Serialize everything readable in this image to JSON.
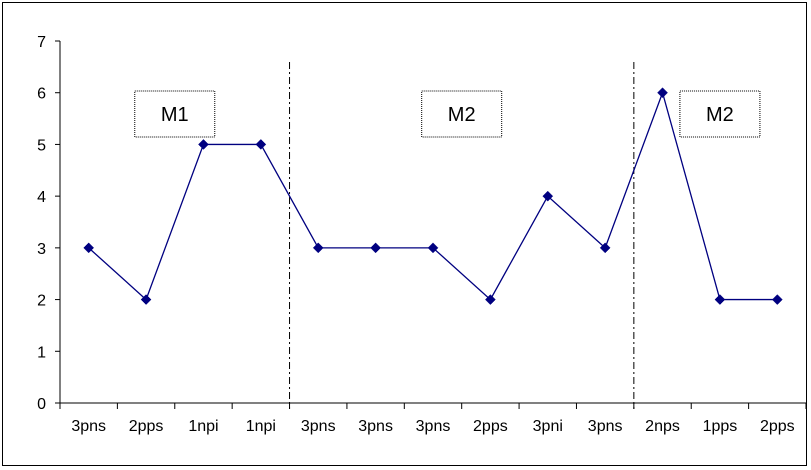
{
  "chart_data": {
    "type": "line",
    "title": "",
    "xlabel": "",
    "ylabel": "",
    "ylim": [
      0,
      7
    ],
    "yticks": [
      0,
      1,
      2,
      3,
      4,
      5,
      6,
      7
    ],
    "grid": false,
    "legend": "none",
    "categories": [
      "3pns",
      "2pps",
      "1npi",
      "1npi",
      "3pns",
      "3pns",
      "3pns",
      "2pps",
      "3pni",
      "3pns",
      "2nps",
      "1pps",
      "2pps"
    ],
    "series": [
      {
        "values": [
          3,
          2,
          5,
          5,
          3,
          3,
          3,
          2,
          4,
          3,
          6,
          2,
          2
        ],
        "color": "#000080"
      }
    ],
    "dividers_after_index": [
      3,
      9
    ],
    "annotations": [
      {
        "text": "M1",
        "between": [
          0,
          3
        ]
      },
      {
        "text": "M2",
        "between": [
          4,
          9
        ]
      },
      {
        "text": "M2",
        "between": [
          10,
          12
        ]
      }
    ]
  }
}
